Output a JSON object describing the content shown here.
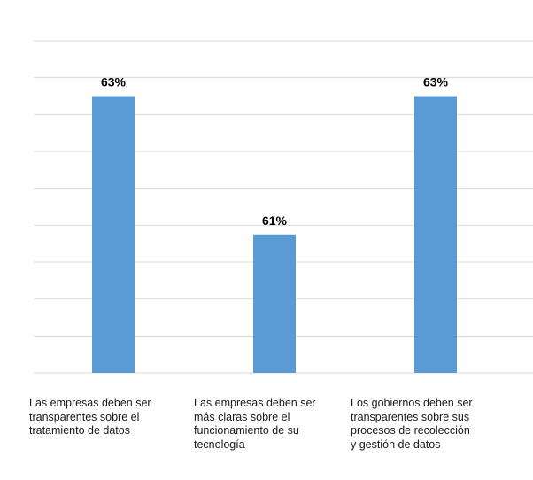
{
  "chart_data": {
    "type": "bar",
    "categories": [
      "Las empresas deben ser\ntransparentes sobre el\ntratamiento de datos",
      "Las empresas deben ser\nmás claras sobre el\nfuncionamiento de su\n tecnología",
      "Los gobiernos deben ser\ntransparentes sobre sus\nprocesos de recolección\ny gestión de datos"
    ],
    "values": [
      63,
      61,
      63
    ],
    "data_labels": [
      "63%",
      "61%",
      "63%"
    ],
    "ylim": [
      59,
      63.8
    ],
    "grid": true,
    "colors": {
      "bar": "#5b9bd5",
      "grid": "#d9d9d9",
      "text": "#000000"
    }
  }
}
